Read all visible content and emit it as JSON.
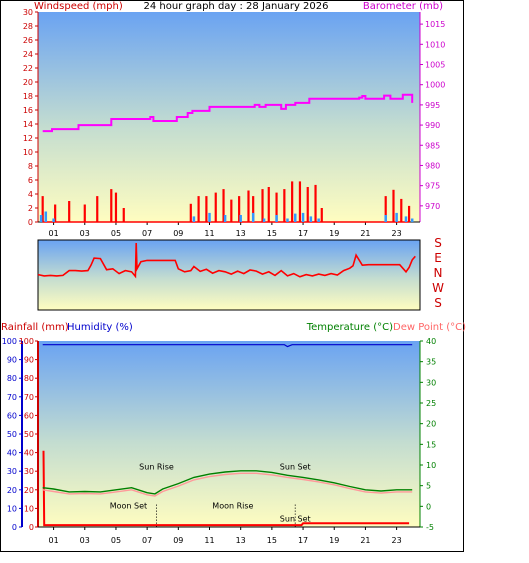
{
  "title": "24 hour graph day : 28 January 2026",
  "chart_data": [
    {
      "type": "line",
      "panel": "wind-barometer",
      "ylabel_left": "Windspeed (mph)",
      "ylabel_right": "Barometer (mb)",
      "left_ylim": [
        0,
        30
      ],
      "left_ticks": [
        0,
        2,
        4,
        6,
        8,
        10,
        12,
        14,
        16,
        18,
        20,
        22,
        24,
        26,
        28,
        30
      ],
      "right_ylim": [
        966,
        1018
      ],
      "right_ticks": [
        970,
        975,
        980,
        985,
        990,
        995,
        1000,
        1005,
        1010,
        1015
      ],
      "xlim": [
        0,
        24.5
      ],
      "x_ticks": [
        "01",
        "03",
        "05",
        "07",
        "09",
        "11",
        "13",
        "15",
        "17",
        "19",
        "21",
        "23"
      ],
      "barometer": {
        "name": "Barometer",
        "color": "#ff00ff",
        "x": [
          0.3,
          0.9,
          2.0,
          2.6,
          4.7,
          5.4,
          7.2,
          7.4,
          8.9,
          9.6,
          9.9,
          11.0,
          11.6,
          12.7,
          13.9,
          14.2,
          14.6,
          14.8,
          15.6,
          15.9,
          16.5,
          17.4,
          18.4,
          20.6,
          20.8,
          21.0,
          22.2,
          22.6,
          23.4,
          23.8,
          24.0
        ],
        "y": [
          988.5,
          989.0,
          989.0,
          990.0,
          991.5,
          991.5,
          992.0,
          991.0,
          992.0,
          993.0,
          993.5,
          994.5,
          994.5,
          994.5,
          995.0,
          994.5,
          995.0,
          995.0,
          994.0,
          995.0,
          995.5,
          996.5,
          996.5,
          996.8,
          997.2,
          996.5,
          997.3,
          996.5,
          997.5,
          997.5,
          995.5
        ]
      },
      "gust": {
        "name": "Gust",
        "color": "#ff0000",
        "x": [
          0.3,
          1.1,
          2.0,
          3.0,
          3.8,
          4.7,
          5.0,
          5.5,
          9.8,
          10.3,
          10.8,
          11.4,
          11.9,
          12.4,
          12.9,
          13.5,
          13.8,
          14.4,
          14.8,
          15.3,
          15.8,
          16.3,
          16.8,
          17.3,
          17.8,
          18.2,
          22.3,
          22.8,
          23.3,
          23.8
        ],
        "y": [
          3.7,
          2.5,
          3.0,
          2.5,
          3.7,
          4.7,
          4.2,
          2.0,
          2.6,
          3.7,
          3.7,
          4.2,
          4.7,
          3.2,
          3.7,
          4.5,
          3.7,
          4.7,
          5.0,
          4.2,
          4.7,
          5.8,
          5.8,
          5.0,
          5.3,
          2.0,
          3.7,
          4.6,
          3.3,
          2.3
        ]
      },
      "speed": {
        "name": "Speed",
        "color": "#3399ff",
        "x": [
          0.2,
          0.5,
          1.0,
          10.0,
          11.0,
          12.0,
          13.0,
          13.8,
          14.5,
          15.3,
          16.0,
          16.5,
          17.0,
          17.5,
          18.0,
          22.3,
          23.0,
          23.6,
          24.0
        ],
        "y": [
          1.0,
          1.5,
          0.5,
          0.8,
          1.3,
          1.0,
          1.0,
          1.3,
          0.5,
          1.0,
          0.5,
          1.2,
          1.3,
          0.8,
          0.5,
          1.0,
          1.3,
          0.8,
          0.5
        ]
      }
    },
    {
      "type": "line",
      "panel": "wind-direction",
      "ylabel_right": [
        "S",
        "E",
        "N",
        "W",
        "S"
      ],
      "ylim": [
        0,
        360
      ],
      "xlim": [
        0,
        24.5
      ],
      "series": {
        "name": "Direction",
        "color": "#ff0000",
        "x": [
          0.0,
          0.4,
          0.8,
          1.2,
          1.6,
          2.0,
          2.4,
          2.8,
          3.2,
          3.4,
          3.6,
          4.0,
          4.4,
          4.8,
          5.2,
          5.6,
          6.0,
          6.25,
          6.3,
          6.35,
          6.6,
          7.0,
          7.4,
          7.8,
          8.2,
          8.6,
          8.8,
          9.0,
          9.4,
          9.8,
          10.0,
          10.4,
          10.8,
          11.2,
          11.6,
          12.0,
          12.4,
          12.8,
          13.2,
          13.6,
          14.0,
          14.4,
          14.8,
          15.2,
          15.6,
          16.0,
          16.4,
          16.8,
          17.2,
          17.6,
          18.0,
          18.4,
          18.8,
          19.2,
          19.6,
          20.0,
          20.2,
          20.4,
          20.8,
          21.2,
          21.6,
          22.0,
          22.4,
          22.8,
          23.2,
          23.6,
          23.8,
          24.0,
          24.2
        ],
        "y": [
          182,
          175,
          178,
          175,
          178,
          205,
          205,
          202,
          205,
          235,
          275,
          272,
          210,
          215,
          188,
          205,
          198,
          172,
          370,
          215,
          255,
          262,
          262,
          262,
          262,
          262,
          262,
          215,
          198,
          205,
          228,
          200,
          212,
          190,
          205,
          198,
          185,
          202,
          188,
          208,
          202,
          185,
          198,
          178,
          205,
          175,
          188,
          170,
          182,
          175,
          185,
          178,
          188,
          180,
          205,
          218,
          232,
          292,
          235,
          238,
          238,
          238,
          238,
          238,
          238,
          198,
          222,
          265,
          285
        ]
      }
    },
    {
      "type": "line",
      "panel": "rain-humidity-temperature",
      "ylabel_left_1": "Rainfall (mm)",
      "ylabel_left_2": "Humidity (%)",
      "ylabel_right_1": "Temperature (°C)",
      "ylabel_right_2": "Dew Point (°C)",
      "left_ylim": [
        0,
        100
      ],
      "left_ticks": [
        0,
        10,
        20,
        30,
        40,
        50,
        60,
        70,
        80,
        90,
        100
      ],
      "right_ylim": [
        -5,
        40
      ],
      "right_ticks": [
        -5,
        0,
        5,
        10,
        15,
        20,
        25,
        30,
        35,
        40
      ],
      "xlim": [
        0,
        24.5
      ],
      "x_ticks": [
        "01",
        "03",
        "05",
        "07",
        "09",
        "11",
        "13",
        "15",
        "17",
        "19",
        "21",
        "23"
      ],
      "annotations": [
        {
          "text": "Sun Rise",
          "x": 7.6,
          "y_pct": 31
        },
        {
          "text": "Sun Set",
          "x": 16.5,
          "y_pct": 31
        },
        {
          "text": "Moon Set",
          "x": 5.8,
          "y_pct": 10
        },
        {
          "text": "Moon Rise",
          "x": 12.5,
          "y_pct": 10
        },
        {
          "text": "Sun Set",
          "x": 16.5,
          "y_pct": 3
        }
      ],
      "markers_x": [
        7.6,
        16.5
      ],
      "humidity": {
        "name": "Humidity",
        "color": "#0000cc",
        "x": [
          0.3,
          15.8,
          16.0,
          16.3,
          24.0
        ],
        "y": [
          98,
          98,
          97,
          98,
          98
        ]
      },
      "rainfall": {
        "name": "Rainfall",
        "color": "#ff0000",
        "x": [
          0.35,
          0.4,
          0.6,
          16.9,
          17.0,
          23.8
        ],
        "y": [
          41,
          1,
          1,
          1,
          2,
          2
        ]
      },
      "temperature": {
        "name": "Temperature",
        "color": "#008000",
        "x": [
          0.3,
          1.0,
          2.0,
          3.0,
          4.0,
          5.0,
          6.0,
          7.0,
          7.5,
          8.0,
          9.0,
          10.0,
          11.0,
          12.0,
          13.0,
          14.0,
          15.0,
          16.0,
          17.0,
          18.0,
          19.0,
          20.0,
          21.0,
          22.0,
          23.0,
          24.0
        ],
        "y": [
          4.5,
          4.2,
          3.5,
          3.6,
          3.5,
          4.0,
          4.5,
          3.3,
          3.0,
          4.2,
          5.5,
          7.0,
          7.8,
          8.3,
          8.6,
          8.6,
          8.2,
          7.5,
          7.0,
          6.4,
          5.7,
          4.8,
          4.0,
          3.7,
          4.0,
          4.0
        ]
      },
      "dewpoint": {
        "name": "Dew Point",
        "color": "#ff9999",
        "x": [
          0.3,
          1.0,
          2.0,
          3.0,
          4.0,
          5.0,
          6.0,
          7.0,
          7.5,
          8.0,
          9.0,
          10.0,
          11.0,
          12.0,
          13.0,
          14.0,
          15.0,
          16.0,
          17.0,
          18.0,
          19.0,
          20.0,
          21.0,
          22.0,
          23.0,
          24.0
        ],
        "y": [
          4.0,
          3.6,
          3.0,
          3.1,
          3.0,
          3.5,
          4.0,
          2.8,
          2.5,
          3.6,
          4.9,
          6.4,
          7.2,
          7.7,
          8.0,
          8.0,
          7.6,
          7.0,
          6.5,
          5.9,
          5.2,
          4.3,
          3.5,
          3.2,
          3.5,
          3.5
        ]
      }
    }
  ]
}
